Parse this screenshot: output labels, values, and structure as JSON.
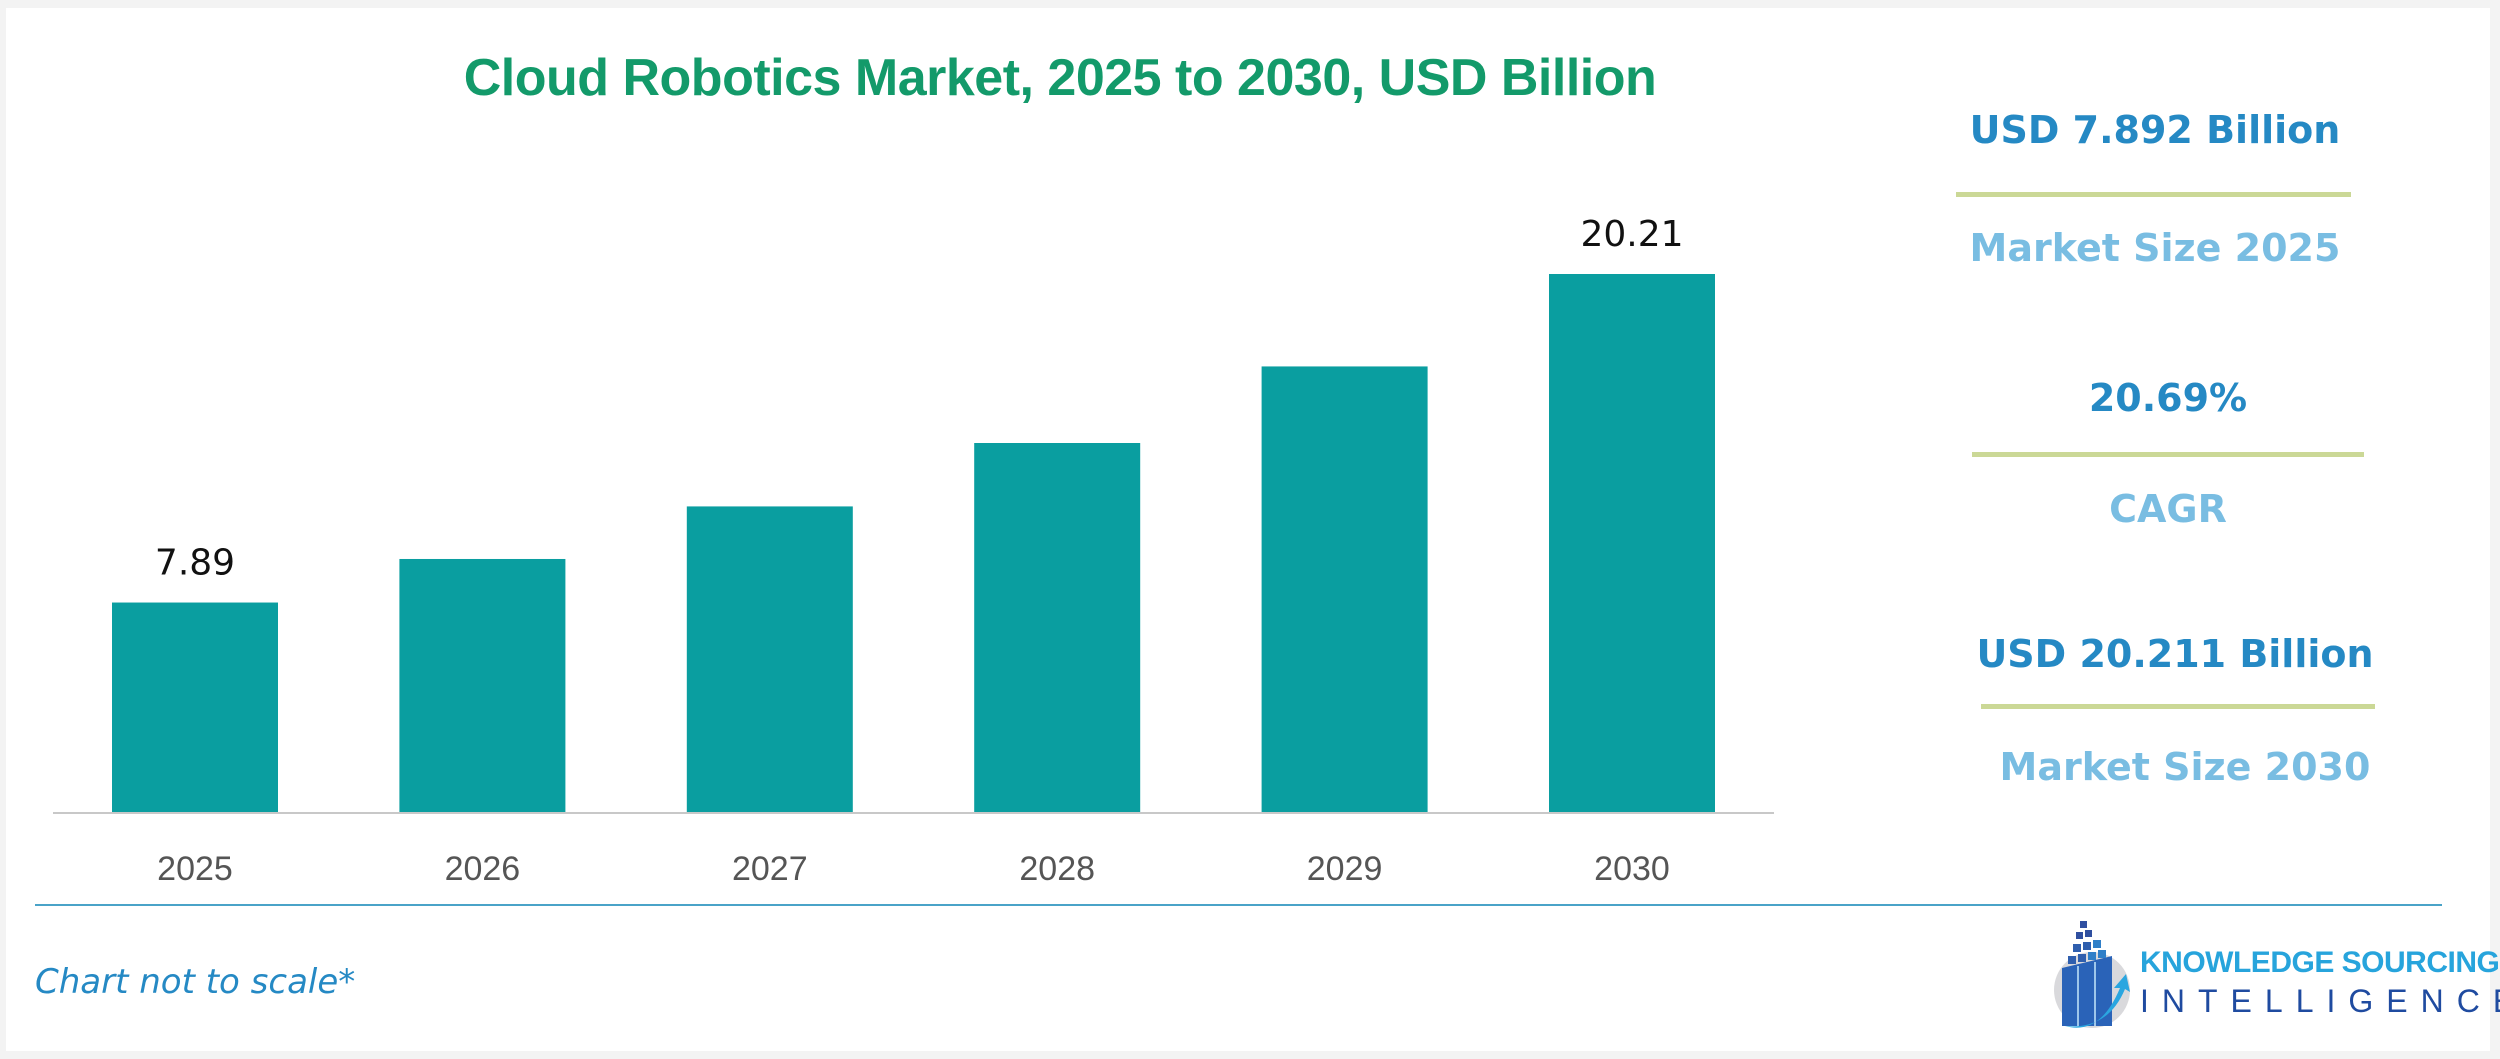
{
  "chart_data": {
    "type": "bar",
    "title": "Cloud Robotics Market, 2025 to 2030, USD Billion",
    "categories": [
      "2025",
      "2026",
      "2027",
      "2028",
      "2029",
      "2030"
    ],
    "values": [
      7.892,
      9.525,
      11.496,
      13.874,
      16.745,
      20.211
    ],
    "data_labels": [
      "7.89",
      "",
      "",
      "",
      "",
      "20.21"
    ],
    "bar_color": "#0a9ea0",
    "ylim": [
      0,
      20.211
    ],
    "grid": false,
    "xlabel": "",
    "ylabel": ""
  },
  "stats": [
    {
      "value": "USD 7.892 Billion",
      "label": "Market Size 2025"
    },
    {
      "value": "20.69%",
      "label": "CAGR"
    },
    {
      "value": "USD 20.211 Billion",
      "label": "Market Size 2030"
    }
  ],
  "footnote": "Chart not to scale*",
  "logo": {
    "line1": "KNOWLEDGE SOURCING",
    "line2": "INTELLIGENCE"
  },
  "colors": {
    "title": "#139a6a",
    "stat_value": "#2589c4",
    "stat_label": "#79bde2",
    "divider": "#cbd896"
  }
}
